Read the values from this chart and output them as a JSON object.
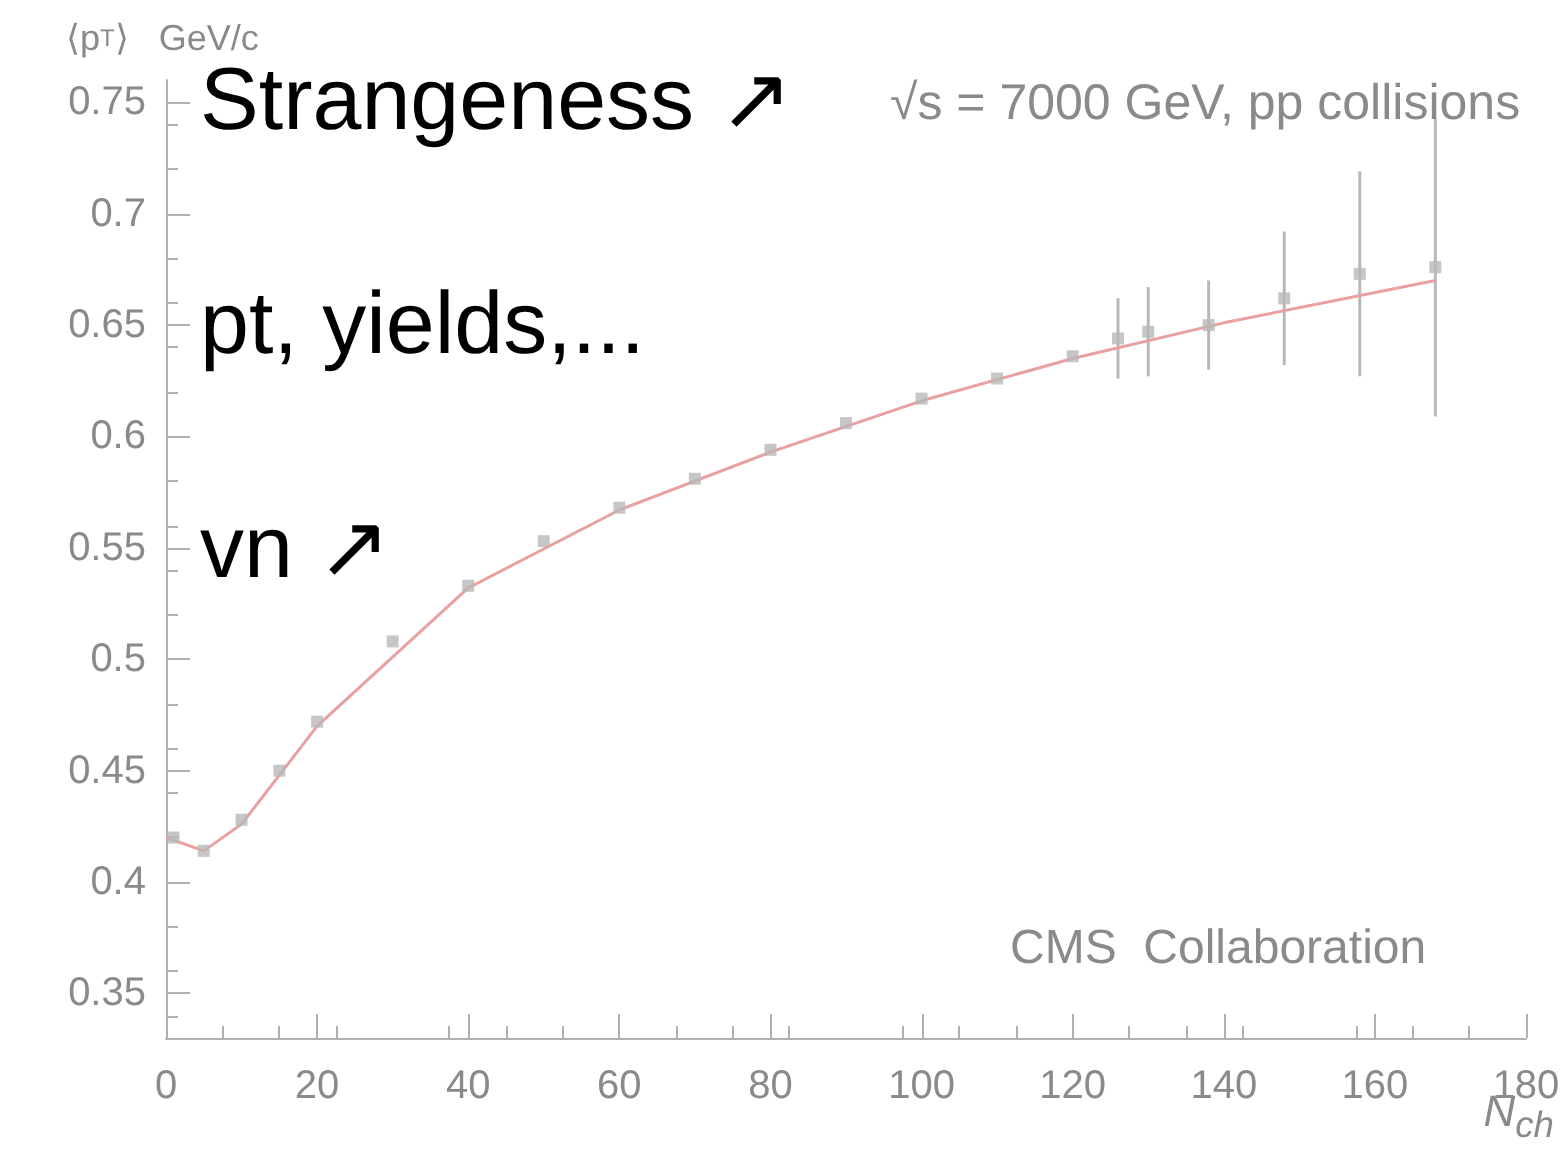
{
  "chart_data": {
    "type": "scatter",
    "title": "√s = 7000 GeV, pp collisions",
    "ylabel": "⟨p$_{T}$⟩   GeV/c",
    "xlabel": "N$_{ch}$",
    "annotations": [
      "Strangeness ↗",
      "pt, yields,...",
      "vn ↗",
      "CMS  Collaboration"
    ],
    "series": [
      {
        "name": null,
        "color": "#b8b8b8",
        "marker": "square",
        "x": [
          1,
          5,
          10,
          15,
          20,
          30,
          40,
          50,
          60,
          70,
          80,
          90,
          100,
          110,
          120,
          126,
          130,
          138,
          148,
          158,
          168
        ],
        "values": [
          0.42,
          0.414,
          0.428,
          0.45,
          0.472,
          0.508,
          0.533,
          0.553,
          0.568,
          0.581,
          0.594,
          0.606,
          0.617,
          0.626,
          0.636,
          0.644,
          0.647,
          0.65,
          0.662,
          0.673,
          0.676
        ],
        "errors": [
          null,
          null,
          null,
          null,
          null,
          null,
          null,
          null,
          null,
          null,
          null,
          null,
          null,
          null,
          null,
          0.018,
          0.02,
          0.02,
          0.03,
          0.046,
          0.067
        ]
      },
      {
        "name": null,
        "type": "line",
        "marker": "none",
        "color": "#e8a0a0",
        "x": [
          0,
          5,
          10,
          20,
          40,
          60,
          80,
          100,
          120,
          140,
          168
        ],
        "values": [
          0.42,
          0.414,
          0.426,
          0.47,
          0.532,
          0.567,
          0.593,
          0.616,
          0.635,
          0.651,
          0.67
        ]
      }
    ],
    "xlim": [
      0,
      180
    ],
    "xticks": [
      0,
      20,
      40,
      60,
      80,
      100,
      120,
      140,
      160,
      180
    ],
    "ylim": [
      0.33,
      0.76
    ],
    "yticks": [
      0.35,
      0.4,
      0.45,
      0.5,
      0.55,
      0.6,
      0.65,
      0.7,
      0.75
    ],
    "grid": false
  }
}
